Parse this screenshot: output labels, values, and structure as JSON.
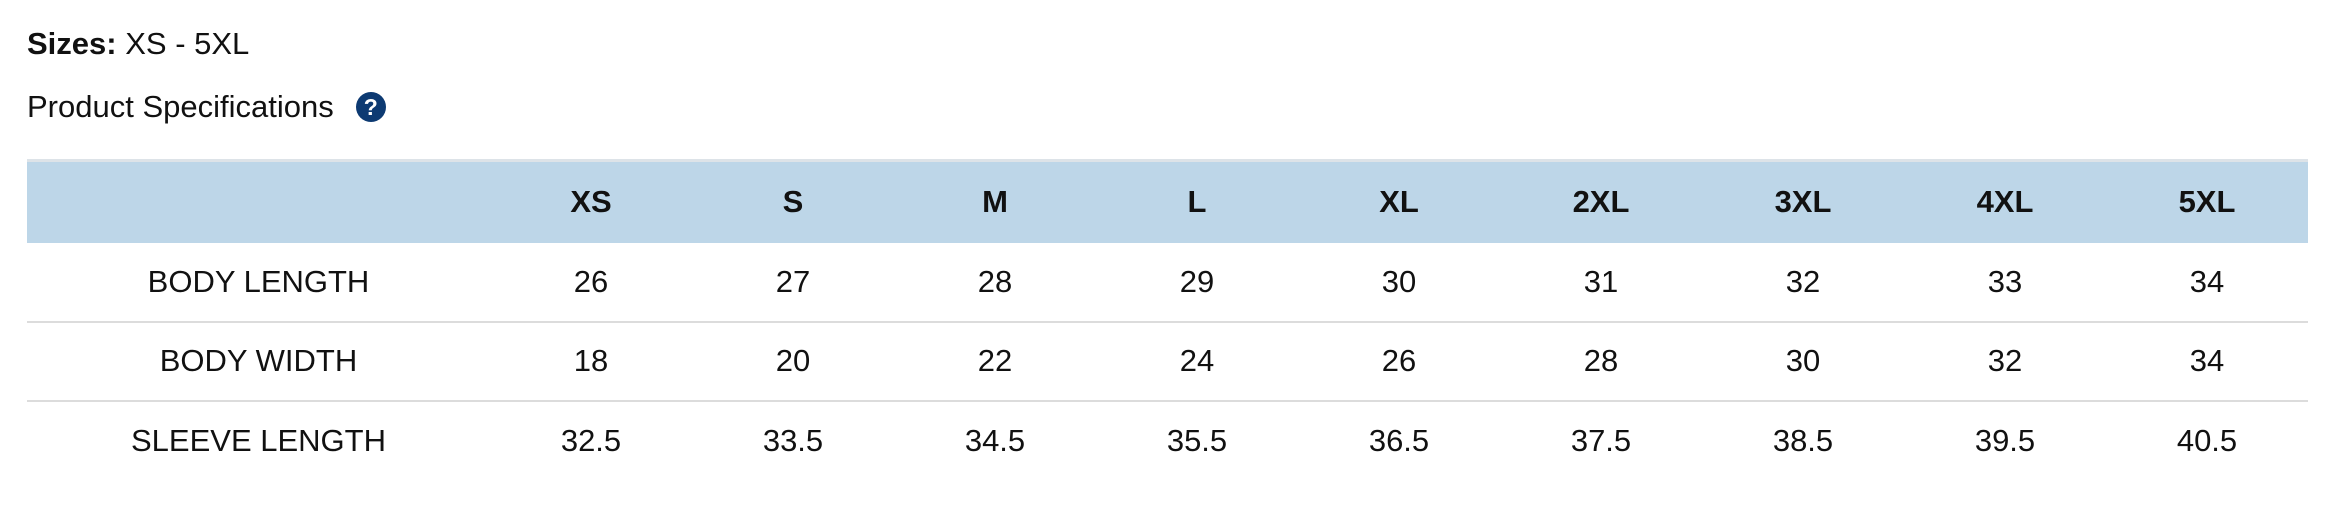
{
  "sizes": {
    "label": "Sizes:",
    "value": "XS - 5XL"
  },
  "specs": {
    "title": "Product Specifications",
    "help_icon": "question-circle-icon",
    "help_glyph": "?"
  },
  "colors": {
    "header_bg": "#bdd6e8",
    "help_icon": "#0d3a72"
  },
  "table": {
    "columns": [
      "",
      "XS",
      "S",
      "M",
      "L",
      "XL",
      "2XL",
      "3XL",
      "4XL",
      "5XL"
    ],
    "rows": [
      {
        "label": "BODY LENGTH",
        "values": [
          "26",
          "27",
          "28",
          "29",
          "30",
          "31",
          "32",
          "33",
          "34"
        ]
      },
      {
        "label": "BODY WIDTH",
        "values": [
          "18",
          "20",
          "22",
          "24",
          "26",
          "28",
          "30",
          "32",
          "34"
        ]
      },
      {
        "label": "SLEEVE LENGTH",
        "values": [
          "32.5",
          "33.5",
          "34.5",
          "35.5",
          "36.5",
          "37.5",
          "38.5",
          "39.5",
          "40.5"
        ]
      }
    ]
  }
}
